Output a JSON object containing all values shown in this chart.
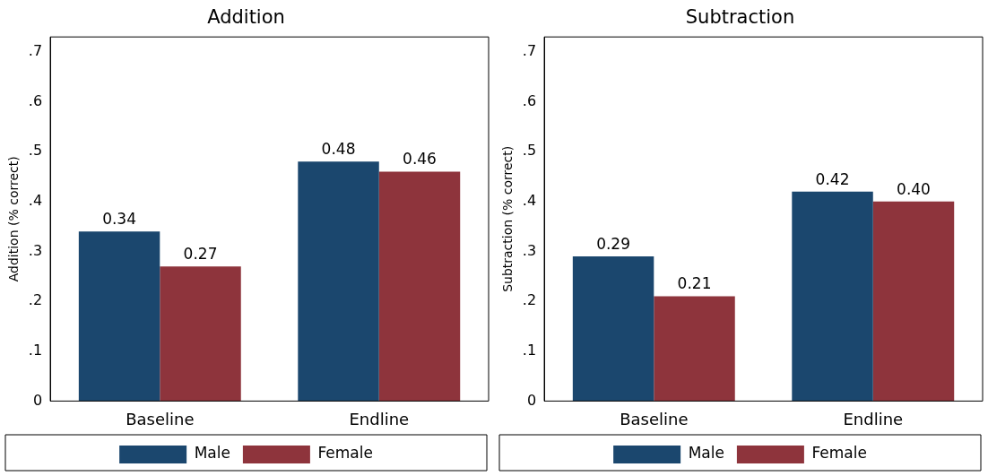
{
  "chart_data": [
    {
      "type": "bar",
      "title": "Addition",
      "ylabel": "Addition (% correct)",
      "categories": [
        "Baseline",
        "Endline"
      ],
      "series": [
        {
          "name": "Male",
          "color": "#1b476e",
          "values": [
            0.34,
            0.48
          ],
          "value_labels": [
            "0.34",
            "0.48"
          ]
        },
        {
          "name": "Female",
          "color": "#8e343c",
          "values": [
            0.27,
            0.46
          ],
          "value_labels": [
            "0.27",
            "0.46"
          ]
        }
      ],
      "ylim": [
        0,
        0.73
      ],
      "yticks": [
        0,
        {
          "value": 0.1,
          "label": ".1"
        },
        {
          "value": 0.2,
          "label": ".2"
        },
        {
          "value": 0.3,
          "label": ".3"
        },
        {
          "value": 0.4,
          "label": ".4"
        },
        {
          "value": 0.5,
          "label": ".5"
        },
        {
          "value": 0.6,
          "label": ".6"
        },
        {
          "value": 0.7,
          "label": ".7"
        }
      ],
      "legend": "bottom"
    },
    {
      "type": "bar",
      "title": "Subtraction",
      "ylabel": "Subtraction (% correct)",
      "categories": [
        "Baseline",
        "Endline"
      ],
      "series": [
        {
          "name": "Male",
          "color": "#1b476e",
          "values": [
            0.29,
            0.42
          ],
          "value_labels": [
            "0.29",
            "0.42"
          ]
        },
        {
          "name": "Female",
          "color": "#8e343c",
          "values": [
            0.21,
            0.4
          ],
          "value_labels": [
            "0.21",
            "0.40"
          ]
        }
      ],
      "ylim": [
        0,
        0.73
      ],
      "yticks": [
        0,
        {
          "value": 0.1,
          "label": ".1"
        },
        {
          "value": 0.2,
          "label": ".2"
        },
        {
          "value": 0.3,
          "label": ".3"
        },
        {
          "value": 0.4,
          "label": ".4"
        },
        {
          "value": 0.5,
          "label": ".5"
        },
        {
          "value": 0.6,
          "label": ".6"
        },
        {
          "value": 0.7,
          "label": ".7"
        }
      ],
      "legend": "bottom"
    }
  ]
}
